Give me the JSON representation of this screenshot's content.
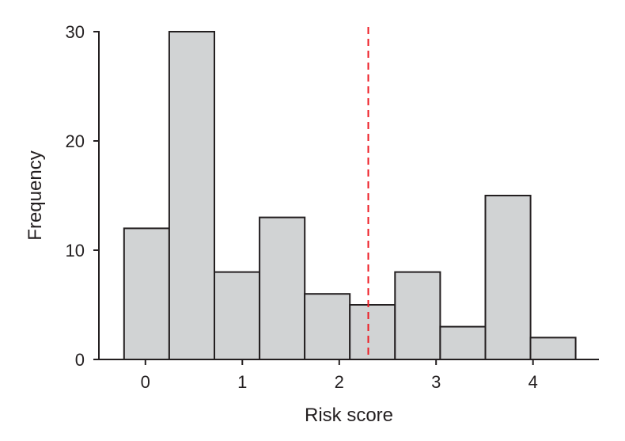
{
  "figure": {
    "background": "#ffffff"
  },
  "chart_data": {
    "type": "histogram",
    "xlabel": "Risk score",
    "ylabel": "Frequency",
    "x_ticks": [
      0,
      1,
      2,
      3,
      4
    ],
    "y_ticks": [
      0,
      10,
      20,
      30
    ],
    "xlim": [
      -0.48,
      4.68
    ],
    "ylim": [
      0,
      30
    ],
    "grid": false,
    "legend": false,
    "bins": {
      "start": -0.22,
      "width": 0.466,
      "frequencies": [
        12,
        30,
        8,
        13,
        6,
        5,
        8,
        3,
        15,
        2
      ]
    },
    "reference_line": {
      "x": 2.3,
      "style": "dashed",
      "color": "#ed1c24"
    },
    "colors": {
      "bar_fill": "#d1d3d4",
      "bar_stroke": "#231f20",
      "axis": "#231f20",
      "text": "#231f20"
    }
  }
}
